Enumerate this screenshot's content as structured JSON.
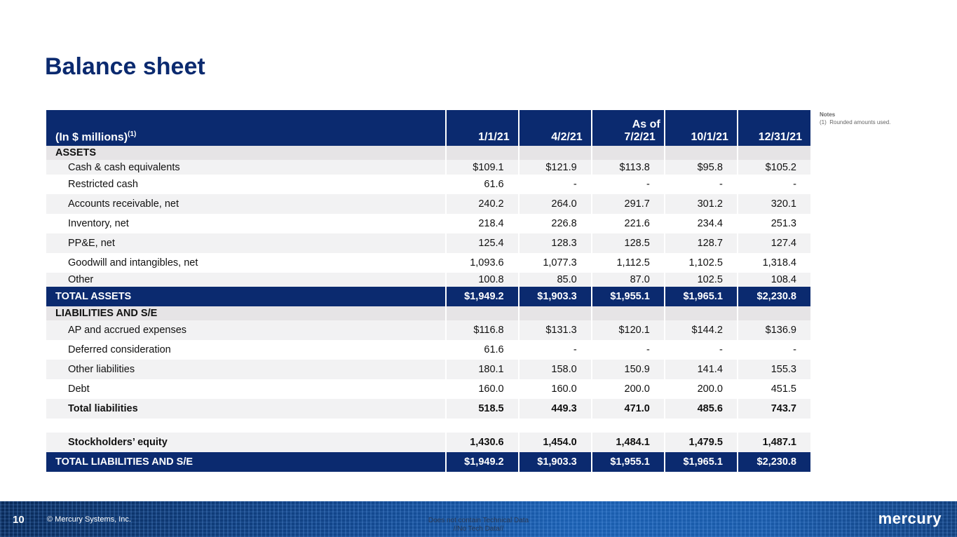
{
  "page": {
    "title": "Balance sheet"
  },
  "notes": {
    "heading": "Notes",
    "items": [
      {
        "num": "(1)",
        "text": "Rounded amounts used."
      }
    ]
  },
  "table": {
    "header": {
      "label": "(In $ millions)",
      "label_sup": "(1)",
      "group_label": "As of",
      "periods": [
        "1/1/21",
        "4/2/21",
        "7/2/21",
        "10/1/21",
        "12/31/21"
      ]
    },
    "assets_heading": "ASSETS",
    "assets": [
      {
        "label": "Cash & cash equivalents",
        "values": [
          "$109.1",
          "$121.9",
          "$113.8",
          "$95.8",
          "$105.2"
        ]
      },
      {
        "label": "Restricted cash",
        "values": [
          "61.6",
          "-",
          "-",
          "-",
          "-"
        ]
      },
      {
        "label": "Accounts receivable, net",
        "values": [
          "240.2",
          "264.0",
          "291.7",
          "301.2",
          "320.1"
        ]
      },
      {
        "label": "Inventory, net",
        "values": [
          "218.4",
          "226.8",
          "221.6",
          "234.4",
          "251.3"
        ]
      },
      {
        "label": "PP&E, net",
        "values": [
          "125.4",
          "128.3",
          "128.5",
          "128.7",
          "127.4"
        ]
      },
      {
        "label": "Goodwill and intangibles, net",
        "values": [
          "1,093.6",
          "1,077.3",
          "1,112.5",
          "1,102.5",
          "1,318.4"
        ]
      },
      {
        "label": "Other",
        "values": [
          "100.8",
          "85.0",
          "87.0",
          "102.5",
          "108.4"
        ]
      }
    ],
    "total_assets": {
      "label": "TOTAL ASSETS",
      "values": [
        "$1,949.2",
        "$1,903.3",
        "$1,955.1",
        "$1,965.1",
        "$2,230.8"
      ]
    },
    "liabilities_heading": "LIABILITIES AND S/E",
    "liabilities": [
      {
        "label": "AP and accrued expenses",
        "values": [
          "$116.8",
          "$131.3",
          "$120.1",
          "$144.2",
          "$136.9"
        ]
      },
      {
        "label": "Deferred consideration",
        "values": [
          "61.6",
          "-",
          "-",
          "-",
          "-"
        ]
      },
      {
        "label": "Other liabilities",
        "values": [
          "180.1",
          "158.0",
          "150.9",
          "141.4",
          "155.3"
        ]
      },
      {
        "label": "Debt",
        "values": [
          "160.0",
          "160.0",
          "200.0",
          "200.0",
          "451.5"
        ]
      }
    ],
    "total_liabilities": {
      "label": "Total liabilities",
      "values": [
        "518.5",
        "449.3",
        "471.0",
        "485.6",
        "743.7"
      ]
    },
    "equity": {
      "label": "Stockholders’ equity",
      "values": [
        "1,430.6",
        "1,454.0",
        "1,484.1",
        "1,479.5",
        "1,487.1"
      ]
    },
    "total_liabilities_se": {
      "label": "TOTAL LIABILITIES AND S/E",
      "values": [
        "$1,949.2",
        "$1,903.3",
        "$1,955.1",
        "$1,965.1",
        "$2,230.8"
      ]
    }
  },
  "footer": {
    "page_number": "10",
    "copyright": "© Mercury Systems, Inc.",
    "disclaimer_line1": "Does not contain Technical Data",
    "disclaimer_line2": "//No Tech Data//",
    "logo_text": "mercury"
  },
  "colors": {
    "brand_navy": "#0b2a6f",
    "row_shade": "#f2f2f3",
    "section_shade": "#e6e4e6"
  }
}
